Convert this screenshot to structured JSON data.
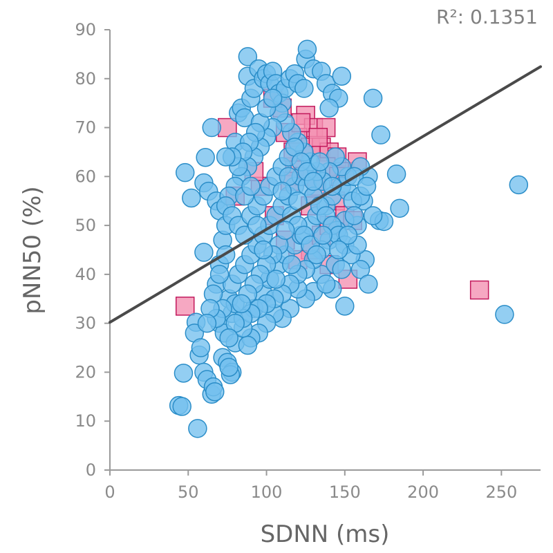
{
  "chart_data": {
    "type": "scatter",
    "xlabel": "SDNN (ms)",
    "ylabel": "pNN50 (%)",
    "annotation": "R²: 0.1351",
    "xlim": [
      0,
      275
    ],
    "ylim": [
      0,
      90
    ],
    "xticks": [
      0,
      50,
      100,
      150,
      200,
      250
    ],
    "yticks": [
      0,
      10,
      20,
      30,
      40,
      50,
      60,
      70,
      80,
      90
    ],
    "x_tick_labels": [
      "0",
      "50",
      "100",
      "150",
      "200",
      "250"
    ],
    "y_tick_labels": [
      "0",
      "10",
      "20",
      "30",
      "40",
      "50",
      "60",
      "70",
      "80",
      "90"
    ],
    "grid": false,
    "trendline": {
      "intercept": 30.2,
      "slope": 0.19,
      "color": "#4a4a4a"
    },
    "series": [
      {
        "marker": "square",
        "fill": "#f48fb1",
        "stroke": "#c2185b",
        "points": [
          [
            48,
            33.5
          ],
          [
            236,
            36.8
          ],
          [
            75,
            70
          ],
          [
            80,
            56
          ],
          [
            125,
            72.5
          ],
          [
            130,
            70
          ],
          [
            138,
            70
          ],
          [
            112,
            69
          ],
          [
            120,
            68
          ],
          [
            128,
            66
          ],
          [
            135,
            66
          ],
          [
            140,
            65
          ],
          [
            145,
            64
          ],
          [
            150,
            61
          ],
          [
            158,
            63
          ],
          [
            110,
            74
          ],
          [
            104,
            76
          ],
          [
            118,
            62
          ],
          [
            124,
            60
          ],
          [
            132,
            58
          ],
          [
            144,
            55
          ],
          [
            150,
            52
          ],
          [
            155,
            51
          ],
          [
            152,
            39
          ],
          [
            140,
            42
          ],
          [
            128,
            45
          ],
          [
            135,
            48
          ],
          [
            120,
            43
          ],
          [
            112,
            47
          ],
          [
            105,
            52
          ],
          [
            96,
            58
          ],
          [
            92,
            61
          ],
          [
            138,
            62
          ],
          [
            146,
            60
          ],
          [
            115,
            59
          ],
          [
            128,
            54
          ],
          [
            140,
            50
          ],
          [
            117,
            65
          ],
          [
            122,
            71
          ],
          [
            133,
            68
          ]
        ]
      },
      {
        "marker": "circle",
        "fill": "#74c0ee",
        "stroke": "#2a8dc8",
        "points": [
          [
            261,
            58.3
          ],
          [
            252,
            31.8
          ],
          [
            56,
            8.5
          ],
          [
            44,
            13.2
          ],
          [
            46,
            13
          ],
          [
            47,
            19.8
          ],
          [
            48,
            60.8
          ],
          [
            52,
            55.6
          ],
          [
            55,
            30.2
          ],
          [
            54,
            28
          ],
          [
            57,
            23.5
          ],
          [
            60,
            20
          ],
          [
            58,
            25
          ],
          [
            62,
            18.5
          ],
          [
            65,
            15.5
          ],
          [
            66,
            17
          ],
          [
            67,
            16
          ],
          [
            60,
            44.5
          ],
          [
            61,
            63.9
          ],
          [
            60,
            58.7
          ],
          [
            63,
            57
          ],
          [
            65,
            70
          ],
          [
            68,
            55
          ],
          [
            70,
            53
          ],
          [
            72,
            23
          ],
          [
            75,
            22
          ],
          [
            78,
            20
          ],
          [
            77,
            19.5
          ],
          [
            76,
            21
          ],
          [
            70,
            30
          ],
          [
            73,
            28
          ],
          [
            80,
            26
          ],
          [
            68,
            38
          ],
          [
            70,
            42
          ],
          [
            72,
            47
          ],
          [
            74,
            50
          ],
          [
            76,
            35
          ],
          [
            78,
            32
          ],
          [
            80,
            67
          ],
          [
            82,
            73
          ],
          [
            84,
            74
          ],
          [
            86,
            72
          ],
          [
            88,
            84.5
          ],
          [
            88,
            80.5
          ],
          [
            90,
            76
          ],
          [
            92,
            78
          ],
          [
            95,
            82
          ],
          [
            98,
            80
          ],
          [
            100,
            81
          ],
          [
            102,
            79
          ],
          [
            104,
            81.5
          ],
          [
            106,
            79
          ],
          [
            108,
            77
          ],
          [
            110,
            75
          ],
          [
            112,
            78
          ],
          [
            115,
            80
          ],
          [
            118,
            81
          ],
          [
            120,
            79
          ],
          [
            124,
            78
          ],
          [
            125,
            84
          ],
          [
            126,
            86
          ],
          [
            130,
            82
          ],
          [
            135,
            81.5
          ],
          [
            138,
            79
          ],
          [
            142,
            77
          ],
          [
            146,
            76
          ],
          [
            148,
            80.5
          ],
          [
            140,
            74
          ],
          [
            168,
            76
          ],
          [
            173,
            68.5
          ],
          [
            183,
            60.5
          ],
          [
            185,
            53.5
          ],
          [
            172,
            51
          ],
          [
            175,
            50.8
          ],
          [
            162,
            55
          ],
          [
            165,
            60
          ],
          [
            160,
            62
          ],
          [
            158,
            50
          ],
          [
            163,
            43
          ],
          [
            160,
            41
          ],
          [
            165,
            38
          ],
          [
            150,
            33.5
          ],
          [
            142,
            37
          ],
          [
            135,
            40
          ],
          [
            130,
            36.5
          ],
          [
            125,
            35
          ],
          [
            120,
            37
          ],
          [
            115,
            33
          ],
          [
            110,
            31
          ],
          [
            105,
            32
          ],
          [
            100,
            30
          ],
          [
            95,
            28
          ],
          [
            90,
            27
          ],
          [
            88,
            25.5
          ],
          [
            85,
            29
          ],
          [
            92,
            33
          ],
          [
            98,
            36
          ],
          [
            102,
            39
          ],
          [
            108,
            42
          ],
          [
            112,
            44
          ],
          [
            118,
            46
          ],
          [
            122,
            48
          ],
          [
            128,
            50
          ],
          [
            132,
            52
          ],
          [
            138,
            54
          ],
          [
            142,
            56
          ],
          [
            148,
            58
          ],
          [
            152,
            57
          ],
          [
            155,
            55
          ],
          [
            150,
            51
          ],
          [
            145,
            49
          ],
          [
            140,
            47
          ],
          [
            135,
            45
          ],
          [
            130,
            43
          ],
          [
            125,
            41
          ],
          [
            120,
            40
          ],
          [
            115,
            38
          ],
          [
            110,
            36
          ],
          [
            105,
            35
          ],
          [
            100,
            34
          ],
          [
            95,
            33
          ],
          [
            90,
            32
          ],
          [
            85,
            31
          ],
          [
            80,
            34
          ],
          [
            78,
            38
          ],
          [
            82,
            40
          ],
          [
            86,
            42
          ],
          [
            90,
            44
          ],
          [
            94,
            46
          ],
          [
            98,
            48
          ],
          [
            102,
            50
          ],
          [
            106,
            52
          ],
          [
            110,
            54
          ],
          [
            114,
            56
          ],
          [
            118,
            58
          ],
          [
            122,
            60
          ],
          [
            126,
            58
          ],
          [
            130,
            56
          ],
          [
            134,
            54
          ],
          [
            138,
            52
          ],
          [
            142,
            50
          ],
          [
            146,
            48
          ],
          [
            150,
            46
          ],
          [
            154,
            44
          ],
          [
            158,
            46
          ],
          [
            156,
            52
          ],
          [
            152,
            60
          ],
          [
            148,
            62
          ],
          [
            144,
            64
          ],
          [
            140,
            61
          ],
          [
            136,
            59
          ],
          [
            132,
            61
          ],
          [
            128,
            63
          ],
          [
            124,
            65
          ],
          [
            120,
            67
          ],
          [
            116,
            69
          ],
          [
            112,
            71
          ],
          [
            108,
            73
          ],
          [
            104,
            70
          ],
          [
            100,
            68
          ],
          [
            96,
            66
          ],
          [
            92,
            64
          ],
          [
            88,
            62
          ],
          [
            84,
            60
          ],
          [
            80,
            58
          ],
          [
            76,
            56
          ],
          [
            74,
            54
          ],
          [
            78,
            52
          ],
          [
            82,
            50
          ],
          [
            86,
            48
          ],
          [
            90,
            52
          ],
          [
            94,
            54
          ],
          [
            98,
            56
          ],
          [
            102,
            58
          ],
          [
            106,
            60
          ],
          [
            110,
            62
          ],
          [
            114,
            64
          ],
          [
            118,
            66
          ],
          [
            122,
            63
          ],
          [
            126,
            61
          ],
          [
            116,
            52
          ],
          [
            120,
            50
          ],
          [
            124,
            48
          ],
          [
            128,
            46
          ],
          [
            132,
            44
          ],
          [
            108,
            46
          ],
          [
            104,
            44
          ],
          [
            100,
            42
          ],
          [
            96,
            40
          ],
          [
            92,
            38
          ],
          [
            88,
            36
          ],
          [
            84,
            34
          ],
          [
            80,
            30
          ],
          [
            76,
            27
          ],
          [
            72,
            33
          ],
          [
            68,
            31
          ],
          [
            66,
            36
          ],
          [
            64,
            33
          ],
          [
            62,
            30
          ],
          [
            70,
            40
          ],
          [
            74,
            44
          ],
          [
            96,
            71
          ],
          [
            100,
            74
          ],
          [
            104,
            76
          ],
          [
            93,
            69
          ],
          [
            89,
            67
          ],
          [
            85,
            65
          ],
          [
            112,
            49
          ],
          [
            136,
            48
          ],
          [
            144,
            42
          ],
          [
            148,
            41
          ],
          [
            138,
            38
          ],
          [
            116,
            42
          ],
          [
            106,
            39
          ],
          [
            98,
            45
          ],
          [
            94,
            50
          ],
          [
            86,
            56
          ],
          [
            82,
            62
          ],
          [
            78,
            64
          ],
          [
            74,
            64
          ],
          [
            90,
            58
          ],
          [
            114,
            60
          ],
          [
            130,
            59
          ],
          [
            134,
            63
          ],
          [
            142,
            58
          ],
          [
            160,
            56
          ],
          [
            156,
            60
          ],
          [
            164,
            58
          ],
          [
            168,
            52
          ],
          [
            152,
            48
          ],
          [
            146,
            45
          ],
          [
            120,
            55
          ],
          [
            110,
            57
          ]
        ]
      }
    ]
  }
}
